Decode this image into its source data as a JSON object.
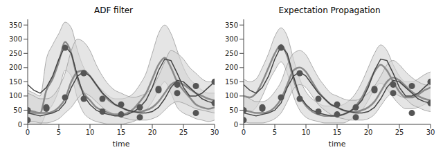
{
  "chart_data": [
    {
      "type": "line",
      "title": "ADF filter",
      "x_label": "time",
      "x": [
        0,
        1,
        2,
        3,
        4,
        5,
        6,
        7,
        8,
        9,
        10,
        11,
        12,
        13,
        14,
        15,
        16,
        17,
        18,
        19,
        20,
        21,
        22,
        23,
        24,
        25,
        26,
        27,
        28,
        29,
        30
      ],
      "xlim": [
        0,
        30
      ],
      "ylim": [
        0,
        370
      ],
      "xticks": [
        0,
        5,
        10,
        15,
        20,
        25,
        30
      ],
      "yticks": [
        0,
        50,
        100,
        150,
        200,
        250,
        300,
        350
      ],
      "series": [
        {
          "type": "band",
          "color": "#d4d4d4",
          "lower": [
            0,
            0,
            0,
            40,
            70,
            120,
            190,
            170,
            90,
            40,
            20,
            10,
            5,
            0,
            0,
            0,
            5,
            10,
            25,
            50,
            80,
            120,
            150,
            110,
            60,
            40,
            30,
            20,
            15,
            10,
            15
          ],
          "upper": [
            120,
            110,
            100,
            230,
            280,
            320,
            360,
            340,
            260,
            200,
            170,
            140,
            120,
            100,
            90,
            90,
            95,
            110,
            140,
            180,
            250,
            320,
            350,
            320,
            260,
            200,
            160,
            140,
            120,
            110,
            110
          ]
        },
        {
          "type": "band",
          "color": "#d4d4d4",
          "lower": [
            10,
            10,
            5,
            5,
            10,
            20,
            40,
            60,
            90,
            110,
            100,
            80,
            60,
            45,
            35,
            25,
            20,
            15,
            15,
            15,
            20,
            30,
            50,
            70,
            80,
            75,
            65,
            55,
            50,
            45,
            40
          ],
          "upper": [
            110,
            100,
            90,
            90,
            100,
            130,
            180,
            260,
            300,
            290,
            260,
            210,
            170,
            140,
            120,
            110,
            100,
            95,
            100,
            110,
            130,
            170,
            220,
            260,
            250,
            230,
            200,
            180,
            160,
            150,
            150
          ]
        },
        {
          "type": "line",
          "line_style": "solid",
          "color": "#8a8a8a",
          "values": [
            40,
            40,
            40,
            120,
            160,
            220,
            290,
            250,
            160,
            110,
            85,
            60,
            50,
            40,
            35,
            35,
            40,
            55,
            80,
            110,
            160,
            210,
            235,
            200,
            150,
            120,
            95,
            70,
            60,
            55,
            60
          ]
        },
        {
          "type": "line",
          "line_style": "solid",
          "color": "#8a8a8a",
          "values": [
            50,
            45,
            40,
            40,
            45,
            60,
            90,
            150,
            185,
            190,
            170,
            140,
            110,
            85,
            70,
            60,
            50,
            45,
            45,
            50,
            60,
            80,
            110,
            140,
            150,
            140,
            125,
            110,
            100,
            90,
            85
          ]
        },
        {
          "type": "line",
          "line_style": "solid",
          "color": "#444444",
          "values": [
            140,
            120,
            110,
            130,
            170,
            230,
            275,
            250,
            170,
            100,
            70,
            50,
            40,
            35,
            30,
            30,
            35,
            45,
            60,
            85,
            130,
            190,
            230,
            225,
            180,
            130,
            100,
            100,
            110,
            130,
            150
          ]
        },
        {
          "type": "line",
          "line_style": "solid",
          "color": "#444444",
          "values": [
            40,
            35,
            30,
            35,
            40,
            50,
            75,
            130,
            170,
            185,
            170,
            140,
            110,
            90,
            70,
            60,
            50,
            45,
            40,
            40,
            45,
            60,
            90,
            130,
            155,
            150,
            130,
            110,
            90,
            80,
            75
          ]
        },
        {
          "type": "scatter",
          "marker": "circle",
          "color": "#555555",
          "x": [
            0,
            3,
            6,
            9,
            12,
            15,
            18,
            21,
            24,
            27,
            30
          ],
          "values": [
            15,
            55,
            270,
            90,
            45,
            35,
            25,
            125,
            140,
            135,
            150
          ]
        },
        {
          "type": "scatter",
          "marker": "circle",
          "color": "#555555",
          "x": [
            0,
            3,
            6,
            9,
            12,
            15,
            18,
            21,
            24,
            27,
            30
          ],
          "values": [
            50,
            60,
            95,
            180,
            90,
            70,
            60,
            120,
            110,
            40,
            75
          ]
        }
      ]
    },
    {
      "type": "line",
      "title": "Expectation Propagation",
      "x_label": "time",
      "x": [
        0,
        1,
        2,
        3,
        4,
        5,
        6,
        7,
        8,
        9,
        10,
        11,
        12,
        13,
        14,
        15,
        16,
        17,
        18,
        19,
        20,
        21,
        22,
        23,
        24,
        25,
        26,
        27,
        28,
        29,
        30
      ],
      "xlim": [
        0,
        30
      ],
      "ylim": [
        0,
        370
      ],
      "xticks": [
        0,
        5,
        10,
        15,
        20,
        25,
        30
      ],
      "yticks": [
        0,
        50,
        100,
        150,
        200,
        250,
        300,
        350
      ],
      "series": [
        {
          "type": "band",
          "color": "#d4d4d4",
          "lower": [
            50,
            45,
            60,
            100,
            150,
            190,
            220,
            180,
            100,
            50,
            25,
            15,
            10,
            5,
            5,
            5,
            5,
            15,
            30,
            50,
            85,
            125,
            145,
            125,
            95,
            70,
            55,
            55,
            60,
            70,
            80
          ],
          "upper": [
            160,
            150,
            160,
            200,
            250,
            310,
            340,
            310,
            230,
            160,
            115,
            90,
            75,
            65,
            65,
            65,
            70,
            85,
            110,
            150,
            200,
            250,
            280,
            260,
            210,
            170,
            150,
            150,
            160,
            175,
            185
          ]
        },
        {
          "type": "band",
          "color": "#d4d4d4",
          "lower": [
            10,
            5,
            5,
            5,
            10,
            20,
            40,
            80,
            125,
            140,
            130,
            100,
            70,
            50,
            35,
            25,
            20,
            15,
            15,
            15,
            20,
            35,
            65,
            95,
            110,
            100,
            90,
            70,
            60,
            50,
            45
          ],
          "upper": [
            100,
            90,
            80,
            80,
            90,
            115,
            150,
            210,
            250,
            260,
            245,
            205,
            165,
            135,
            110,
            100,
            90,
            85,
            85,
            95,
            110,
            135,
            170,
            210,
            225,
            210,
            185,
            165,
            150,
            140,
            135
          ]
        },
        {
          "type": "line",
          "line_style": "solid",
          "color": "#8a8a8a",
          "values": [
            100,
            95,
            110,
            150,
            200,
            250,
            280,
            240,
            160,
            100,
            65,
            45,
            35,
            30,
            30,
            30,
            35,
            45,
            65,
            95,
            140,
            185,
            210,
            190,
            150,
            115,
            95,
            95,
            105,
            120,
            130
          ]
        },
        {
          "type": "line",
          "line_style": "solid",
          "color": "#8a8a8a",
          "values": [
            50,
            45,
            40,
            40,
            45,
            60,
            90,
            140,
            190,
            200,
            185,
            150,
            115,
            90,
            70,
            60,
            50,
            45,
            45,
            50,
            60,
            80,
            115,
            150,
            165,
            155,
            135,
            115,
            100,
            90,
            85
          ]
        },
        {
          "type": "line",
          "line_style": "solid",
          "color": "#444444",
          "values": [
            140,
            120,
            110,
            130,
            170,
            230,
            275,
            250,
            170,
            100,
            70,
            50,
            40,
            35,
            30,
            30,
            35,
            45,
            60,
            85,
            130,
            190,
            230,
            225,
            180,
            130,
            100,
            100,
            110,
            130,
            150
          ]
        },
        {
          "type": "line",
          "line_style": "solid",
          "color": "#444444",
          "values": [
            40,
            35,
            30,
            35,
            40,
            50,
            75,
            130,
            170,
            185,
            170,
            140,
            110,
            90,
            70,
            60,
            50,
            45,
            40,
            40,
            45,
            60,
            90,
            130,
            155,
            150,
            130,
            110,
            90,
            80,
            75
          ]
        },
        {
          "type": "scatter",
          "marker": "circle",
          "color": "#555555",
          "x": [
            0,
            3,
            6,
            9,
            12,
            15,
            18,
            21,
            24,
            27,
            30
          ],
          "values": [
            15,
            55,
            270,
            90,
            45,
            35,
            25,
            125,
            140,
            135,
            150
          ]
        },
        {
          "type": "scatter",
          "marker": "circle",
          "color": "#555555",
          "x": [
            0,
            3,
            6,
            9,
            12,
            15,
            18,
            21,
            24,
            27,
            30
          ],
          "values": [
            50,
            60,
            95,
            180,
            90,
            70,
            60,
            120,
            110,
            40,
            75
          ]
        }
      ]
    }
  ]
}
